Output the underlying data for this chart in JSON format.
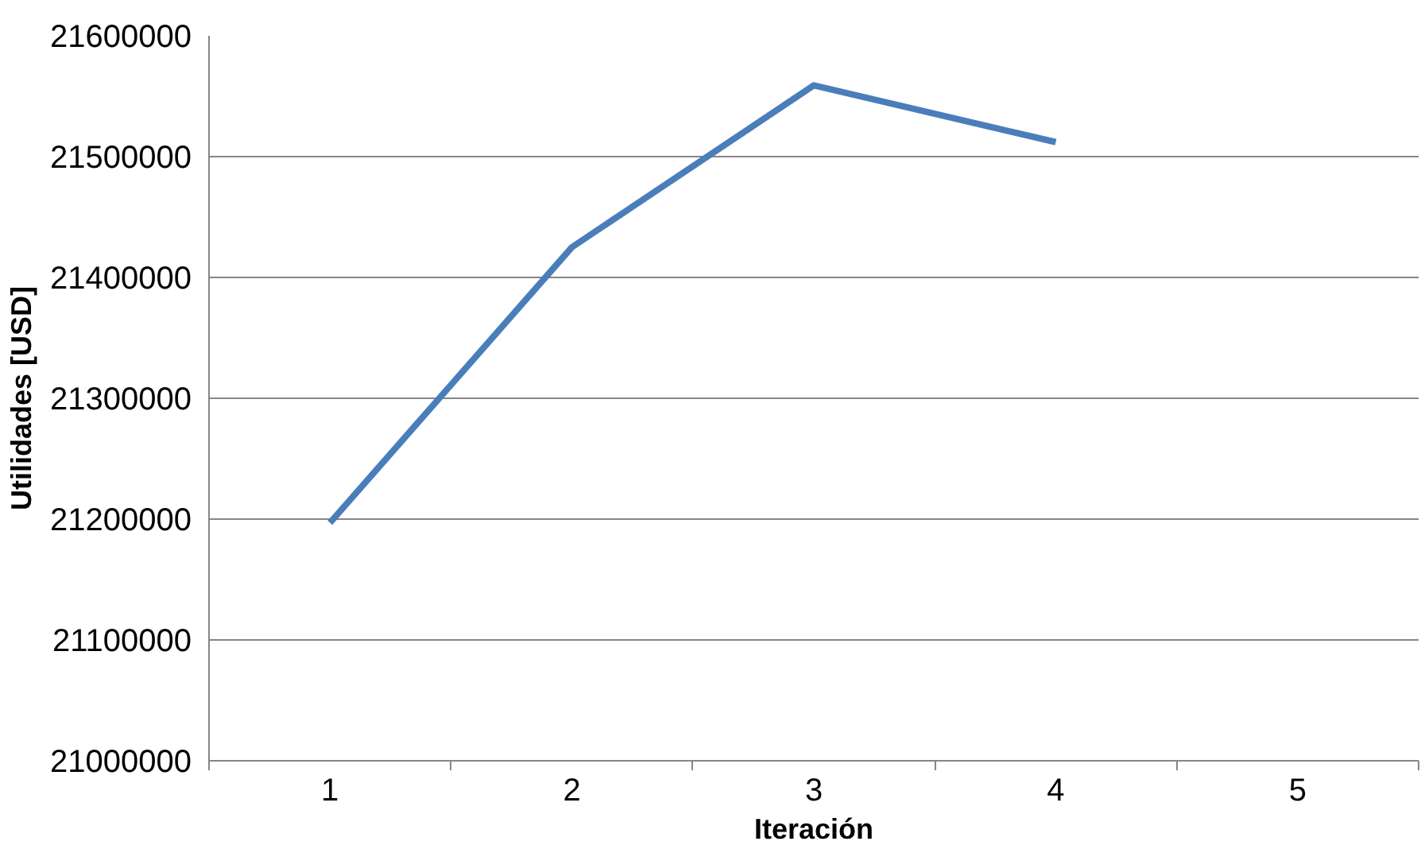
{
  "chart_data": {
    "type": "line",
    "xlabel": "Iteración",
    "ylabel": "Utilidades [USD]",
    "categories": [
      "1",
      "2",
      "3",
      "4",
      "5"
    ],
    "series": [
      {
        "color": "#4a7ebb",
        "values": [
          21197000,
          21425000,
          21559000,
          21512000,
          null
        ]
      }
    ],
    "ylim": [
      21000000,
      21600000
    ],
    "yticks": [
      21000000,
      21100000,
      21200000,
      21300000,
      21400000,
      21500000,
      21600000
    ],
    "grid": "y",
    "marker": "none",
    "line_style": "solid"
  }
}
